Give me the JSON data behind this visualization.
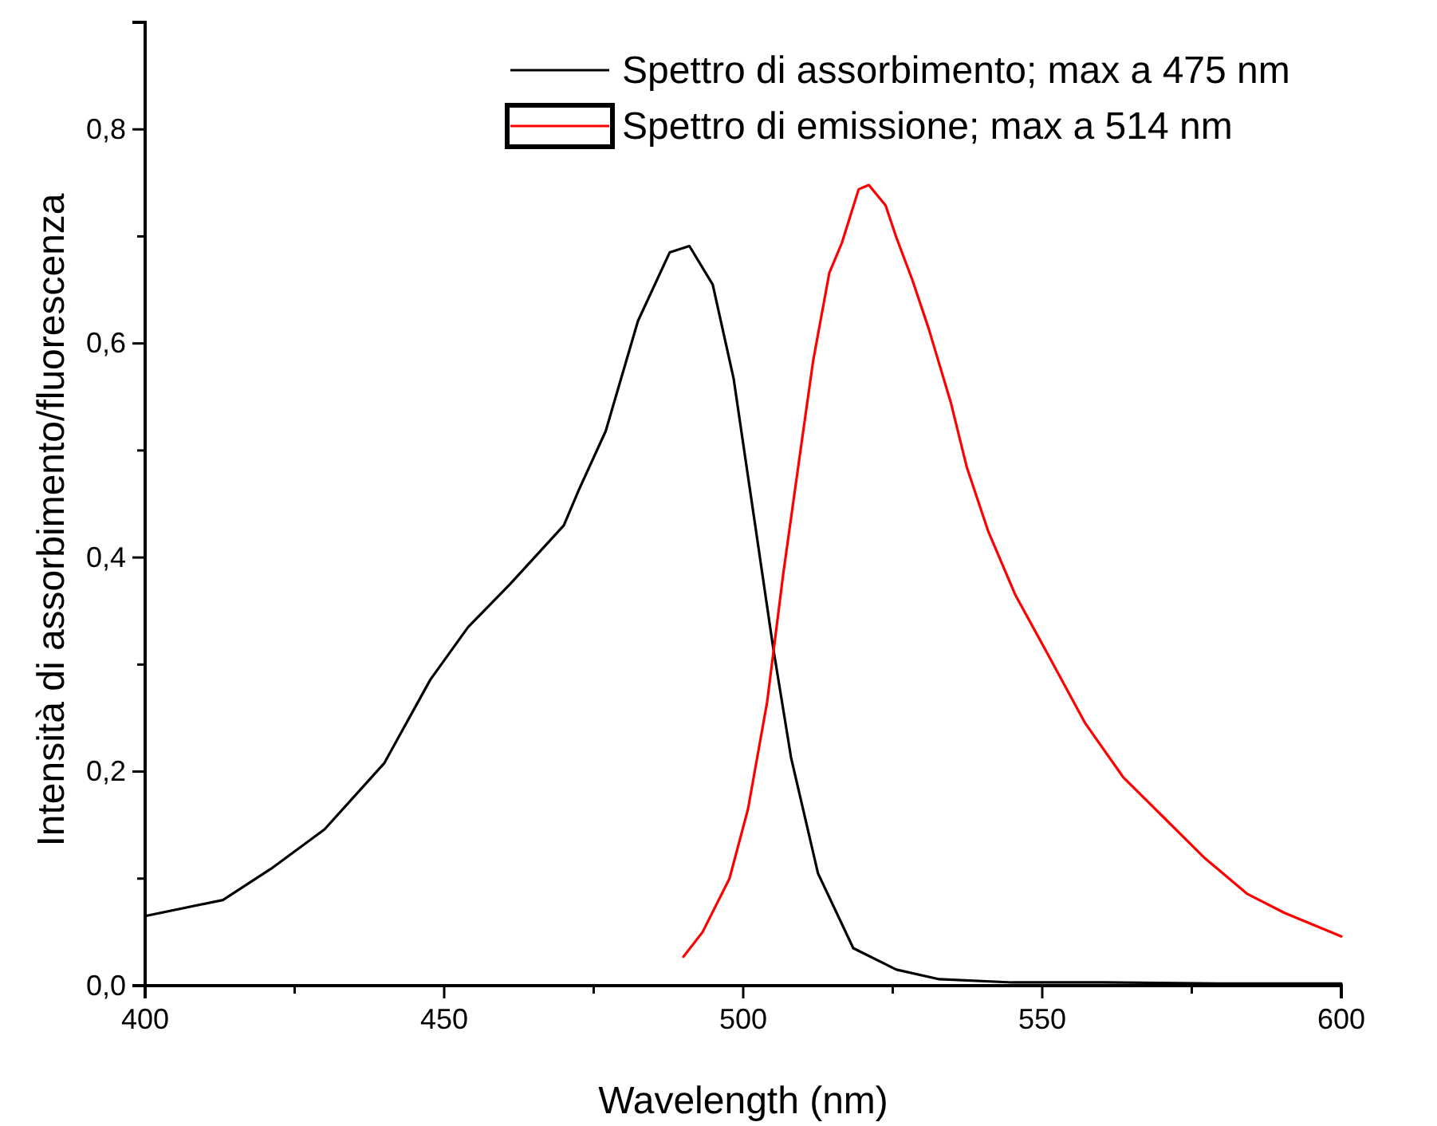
{
  "chart_data": {
    "type": "line",
    "xlabel": "Wavelength (nm)",
    "ylabel": "Intensità di assorbimento/fluorescenza",
    "xlim": [
      400,
      600
    ],
    "ylim": [
      0,
      0.9
    ],
    "xticks": [
      400,
      {
        "value": 425,
        "label": null
      },
      450,
      {
        "value": 475,
        "label": null
      },
      500,
      {
        "value": 525,
        "label": null
      },
      550,
      {
        "value": 575,
        "label": null
      },
      600
    ],
    "yticks": [
      {
        "value": 0,
        "label": "0,0"
      },
      {
        "value": 0.1,
        "label": null
      },
      {
        "value": 0.2,
        "label": "0,2"
      },
      {
        "value": 0.3,
        "label": null
      },
      {
        "value": 0.4,
        "label": "0,4"
      },
      {
        "value": 0.5,
        "label": null
      },
      {
        "value": 0.6,
        "label": "0,6"
      },
      {
        "value": 0.7,
        "label": null
      },
      {
        "value": 0.8,
        "label": "0,8"
      }
    ],
    "grid": false,
    "legend": "top right",
    "marker": "none",
    "line_style": "solid",
    "series": [
      {
        "name": "Spettro di assorbimento; max a 475 nm",
        "color": "#000000",
        "x": [
          400,
          413,
          421,
          430,
          440,
          447.7,
          454,
          461,
          470,
          472.5,
          477,
          482.4,
          487.7,
          491,
          494.9,
          498.4,
          501.9,
          505,
          508,
          512.5,
          518.4,
          525.6,
          532.8,
          545,
          560,
          580,
          600
        ],
        "values": [
          0.065,
          0.08,
          0.109,
          0.146,
          0.208,
          0.286,
          0.335,
          0.375,
          0.43,
          0.463,
          0.518,
          0.621,
          0.685,
          0.691,
          0.655,
          0.567,
          0.434,
          0.316,
          0.213,
          0.105,
          0.035,
          0.015,
          0.006,
          0.003,
          0.003,
          0.002,
          0.002
        ]
      },
      {
        "name": "Spettro di emissione; max a 514 nm",
        "color": "#ff0000",
        "x": [
          490,
          493.2,
          497.7,
          500.8,
          504,
          506.7,
          509.3,
          511.7,
          514.4,
          516.5,
          519.3,
          521,
          523.8,
          525.6,
          528.3,
          531,
          534.7,
          537.4,
          541,
          545.5,
          550.9,
          557.2,
          563.5,
          569.8,
          577,
          584.2,
          590.5,
          600
        ],
        "values": [
          0.027,
          0.05,
          0.1,
          0.165,
          0.265,
          0.385,
          0.489,
          0.584,
          0.666,
          0.694,
          0.744,
          0.748,
          0.729,
          0.699,
          0.659,
          0.614,
          0.545,
          0.484,
          0.424,
          0.365,
          0.31,
          0.245,
          0.195,
          0.16,
          0.12,
          0.086,
          0.068,
          0.046
        ]
      }
    ]
  }
}
